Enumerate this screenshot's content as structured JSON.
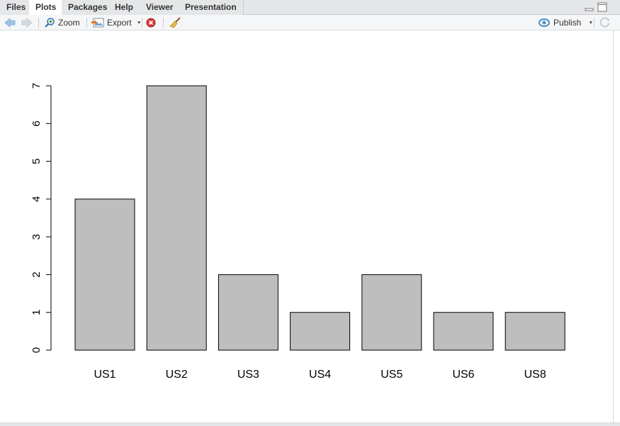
{
  "tabs": [
    {
      "label": "Files"
    },
    {
      "label": "Plots"
    },
    {
      "label": "Packages"
    },
    {
      "label": "Help"
    },
    {
      "label": "Viewer"
    },
    {
      "label": "Presentation"
    }
  ],
  "toolbar": {
    "zoom_label": "Zoom",
    "export_label": "Export",
    "publish_label": "Publish"
  },
  "icons": {
    "back": "arrow-left-icon",
    "forward": "arrow-right-icon",
    "zoom": "magnifier-icon",
    "export": "export-image-icon",
    "remove": "remove-plot-icon",
    "clear": "broom-icon",
    "publish": "publish-icon",
    "refresh": "refresh-icon"
  },
  "colors": {
    "bar_fill": "#bebebe",
    "bar_stroke": "#000000"
  },
  "chart_data": {
    "type": "bar",
    "categories": [
      "US1",
      "US2",
      "US3",
      "US4",
      "US5",
      "US6",
      "US8"
    ],
    "values": [
      4,
      7,
      2,
      1,
      2,
      1,
      1
    ],
    "yticks": [
      "0",
      "1",
      "2",
      "3",
      "4",
      "5",
      "6",
      "7"
    ],
    "ylim": [
      0,
      7
    ],
    "title": "",
    "xlabel": "",
    "ylabel": "",
    "grid": false
  }
}
